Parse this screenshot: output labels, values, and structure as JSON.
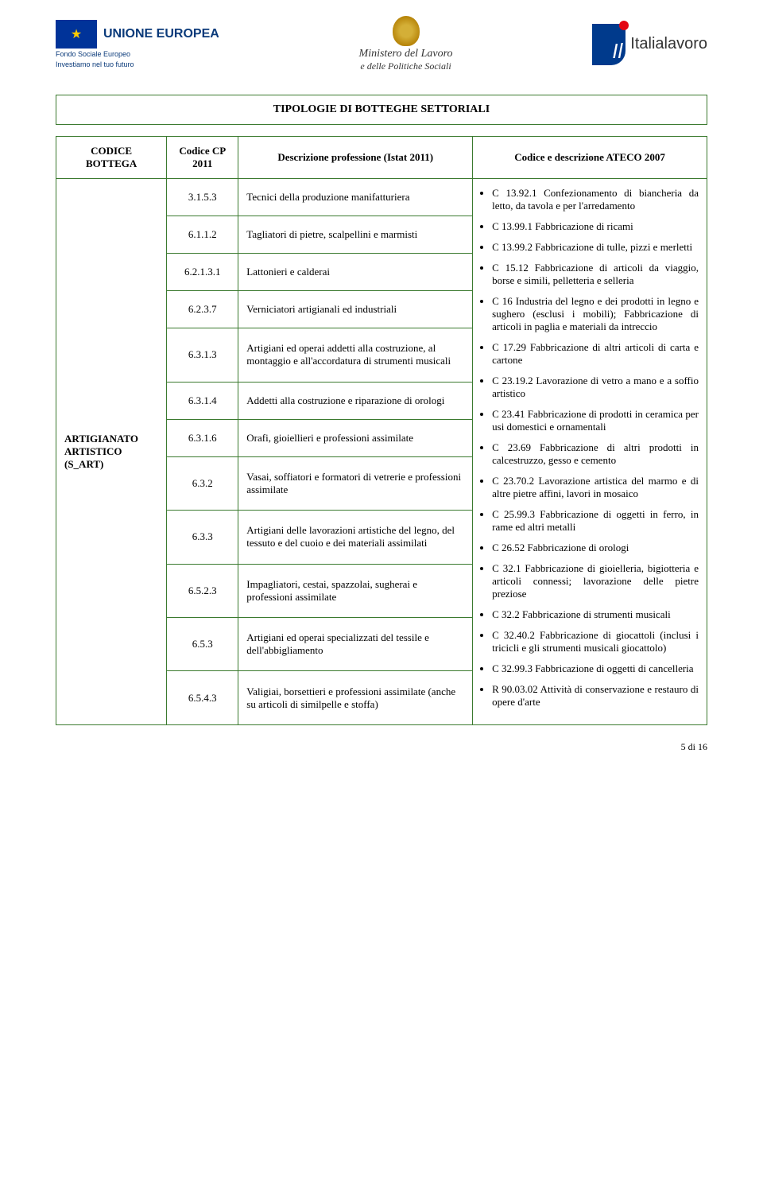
{
  "header": {
    "eu_title": "UNIONE EUROPEA",
    "eu_sub1": "Fondo Sociale Europeo",
    "eu_sub2": "Investiamo nel tuo futuro",
    "ministero_line1": "Ministero del Lavoro",
    "ministero_line2": "e delle Politiche Sociali",
    "italialavoro": "Italialavoro"
  },
  "banner": "TIPOLOGIE DI BOTTEGHE SETTORIALI",
  "columns": {
    "c1": "CODICE BOTTEGA",
    "c2": "Codice CP 2011",
    "c3": "Descrizione professione (Istat 2011)",
    "c4": "Codice e descrizione ATECO 2007"
  },
  "sector_label": "ARTIGIANATO ARTISTICO (S_ART)",
  "rows": [
    {
      "code": "3.1.5.3",
      "desc": "Tecnici della produzione manifatturiera"
    },
    {
      "code": "6.1.1.2",
      "desc": "Tagliatori di pietre, scalpellini e marmisti"
    },
    {
      "code": "6.2.1.3.1",
      "desc": "Lattonieri e calderai"
    },
    {
      "code": "6.2.3.7",
      "desc": "Verniciatori artigianali ed industriali"
    },
    {
      "code": "6.3.1.3",
      "desc": "Artigiani ed operai addetti alla costruzione, al montaggio e all'accordatura di strumenti musicali"
    },
    {
      "code": "6.3.1.4",
      "desc": "Addetti alla costruzione e riparazione di orologi"
    },
    {
      "code": "6.3.1.6",
      "desc": "Orafi, gioiellieri e professioni assimilate"
    },
    {
      "code": "6.3.2",
      "desc": "Vasai, soffiatori e formatori di vetrerie e professioni assimilate"
    },
    {
      "code": "6.3.3",
      "desc": "Artigiani delle lavorazioni artistiche del legno, del tessuto e del cuoio e dei materiali assimilati"
    },
    {
      "code": "6.5.2.3",
      "desc": "Impagliatori, cestai, spazzolai, sugherai e professioni assimilate"
    },
    {
      "code": "6.5.3",
      "desc": "Artigiani ed operai specializzati del tessile e dell'abbigliamento"
    },
    {
      "code": "6.5.4.3",
      "desc": "Valigiai, borsettieri e professioni assimilate (anche su articoli di similpelle e stoffa)"
    }
  ],
  "ateco": [
    "C 13.92.1 Confezionamento di biancheria da letto, da tavola e per l'arredamento",
    "C 13.99.1 Fabbricazione di ricami",
    "C 13.99.2 Fabbricazione di tulle, pizzi e merletti",
    "C 15.12 Fabbricazione di articoli da viaggio, borse e simili, pelletteria e selleria",
    "C 16 Industria del legno e dei prodotti in legno e sughero (esclusi i mobili); Fabbricazione di articoli in paglia e materiali da intreccio",
    "C 17.29 Fabbricazione di altri articoli di carta e cartone",
    "C 23.19.2 Lavorazione di vetro a mano e a soffio artistico",
    "C 23.41 Fabbricazione di prodotti in ceramica per usi domestici e ornamentali",
    "C 23.69 Fabbricazione di altri prodotti in calcestruzzo, gesso e cemento",
    "C 23.70.2 Lavorazione artistica del marmo e di altre pietre affini, lavori in mosaico",
    "C 25.99.3 Fabbricazione di oggetti in ferro, in rame ed altri metalli",
    "C 26.52 Fabbricazione di orologi",
    "C 32.1 Fabbricazione di gioielleria, bigiotteria e articoli connessi; lavorazione delle pietre preziose",
    "C 32.2 Fabbricazione di strumenti musicali",
    "C 32.40.2 Fabbricazione di giocattoli (inclusi i tricicli e gli strumenti musicali giocattolo)",
    "C 32.99.3 Fabbricazione di oggetti di cancelleria",
    "R 90.03.02 Attività di conservazione e restauro di opere d'arte"
  ],
  "footer": "5 di 16"
}
